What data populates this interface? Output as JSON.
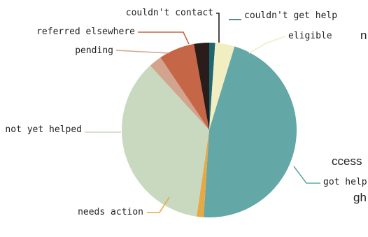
{
  "background_text": {
    "line1": "n",
    "line2": "ccess",
    "line3": "gh"
  },
  "chart_data": {
    "type": "pie",
    "start": "top",
    "direction": "clockwise",
    "slices": [
      {
        "label": "couldn't get help",
        "value": 1.1,
        "color": "#1f6670"
      },
      {
        "label": "eligible",
        "value": 3.6,
        "color": "#f1efc2"
      },
      {
        "label": "got help",
        "value": 46.3,
        "color": "#63a7a6"
      },
      {
        "label": "needs action",
        "value": 1.3,
        "color": "#e6a945"
      },
      {
        "label": "not yet helped",
        "value": 35.9,
        "color": "#c8d9bf"
      },
      {
        "label": "pending",
        "value": 2.4,
        "color": "#d2a48d"
      },
      {
        "label": "referred elsewhere",
        "value": 6.6,
        "color": "#c56646"
      },
      {
        "label": "couldn't contact",
        "value": 2.8,
        "color": "#2a1c1a"
      }
    ]
  }
}
